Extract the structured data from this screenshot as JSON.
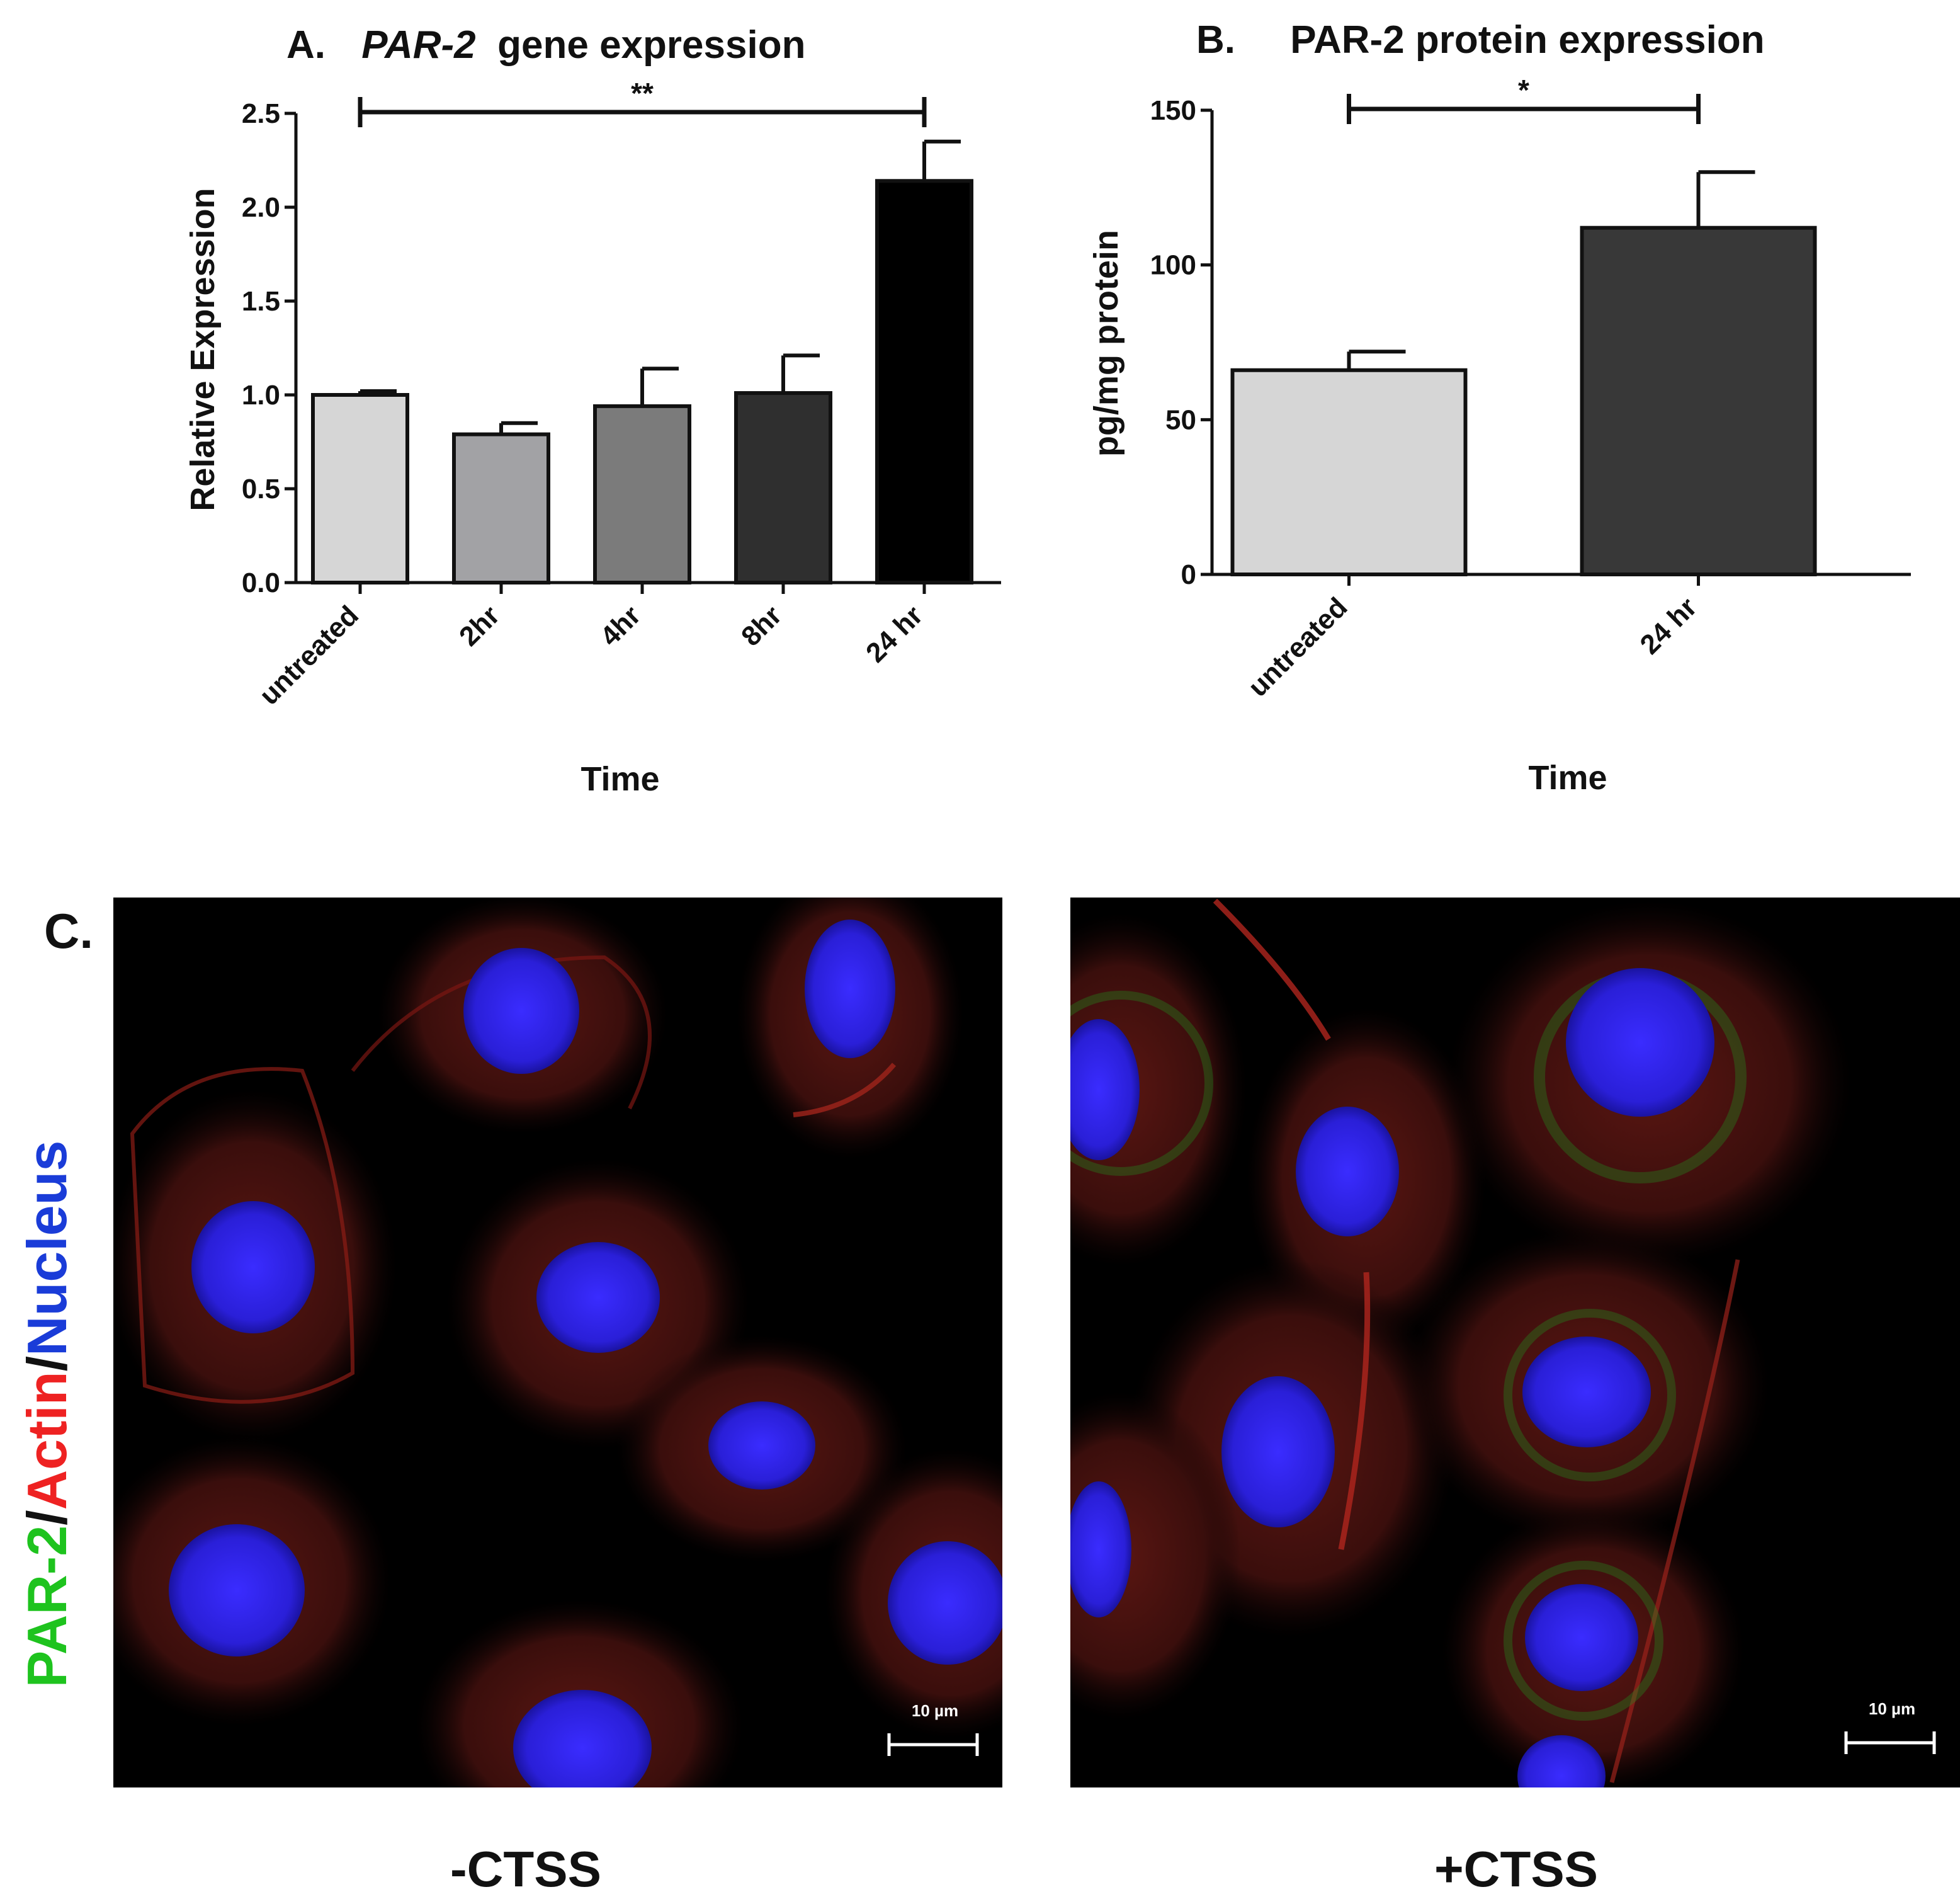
{
  "chart_data": [
    {
      "panel": "A.",
      "title_italic": "PAR-2",
      "title_rest": " gene expression",
      "type": "bar",
      "xlabel": "Time",
      "ylabel": "Relative Expression",
      "categories": [
        "untreated",
        "2hr",
        "4hr",
        "8hr",
        "24 hr"
      ],
      "values": [
        1.0,
        0.79,
        0.94,
        1.01,
        2.14
      ],
      "errors": [
        0.02,
        0.06,
        0.2,
        0.2,
        0.21
      ],
      "colors": [
        "#d6d6d6",
        "#a2a2a5",
        "#7b7b7b",
        "#2f2f2f",
        "#000000"
      ],
      "ylim": [
        0,
        2.5
      ],
      "yticks": [
        "0.0",
        "0.5",
        "1.0",
        "1.5",
        "2.0",
        "2.5"
      ],
      "ytick_values": [
        0,
        0.5,
        1.0,
        1.5,
        2.0,
        2.5
      ],
      "significance": {
        "from": "untreated",
        "to": "24 hr",
        "label": "**"
      }
    },
    {
      "panel": "B.",
      "title": "PAR-2 protein expression",
      "type": "bar",
      "xlabel": "Time",
      "ylabel": "pg/mg protein",
      "categories": [
        "untreated",
        "24 hr"
      ],
      "values": [
        66,
        112
      ],
      "errors": [
        6,
        18
      ],
      "colors": [
        "#d6d6d6",
        "#383838"
      ],
      "ylim": [
        0,
        150
      ],
      "yticks": [
        "0",
        "50",
        "100",
        "150"
      ],
      "ytick_values": [
        0,
        50,
        100,
        150
      ],
      "significance": {
        "from": "untreated",
        "to": "24 hr",
        "label": "*"
      }
    }
  ],
  "panel_c": {
    "letter": "C.",
    "stain_labels": [
      {
        "text": "PAR-2",
        "color": "#1ec31e"
      },
      {
        "text": "/",
        "color": "#111111"
      },
      {
        "text": "Actin",
        "color": "#ee2222"
      },
      {
        "text": "/",
        "color": "#111111"
      },
      {
        "text": "Nucleus",
        "color": "#1a3cd8"
      }
    ],
    "images": [
      {
        "condition": "-CTSS",
        "scale_bar": "10 µm"
      },
      {
        "condition": "+CTSS",
        "scale_bar": "10 µm"
      }
    ]
  }
}
